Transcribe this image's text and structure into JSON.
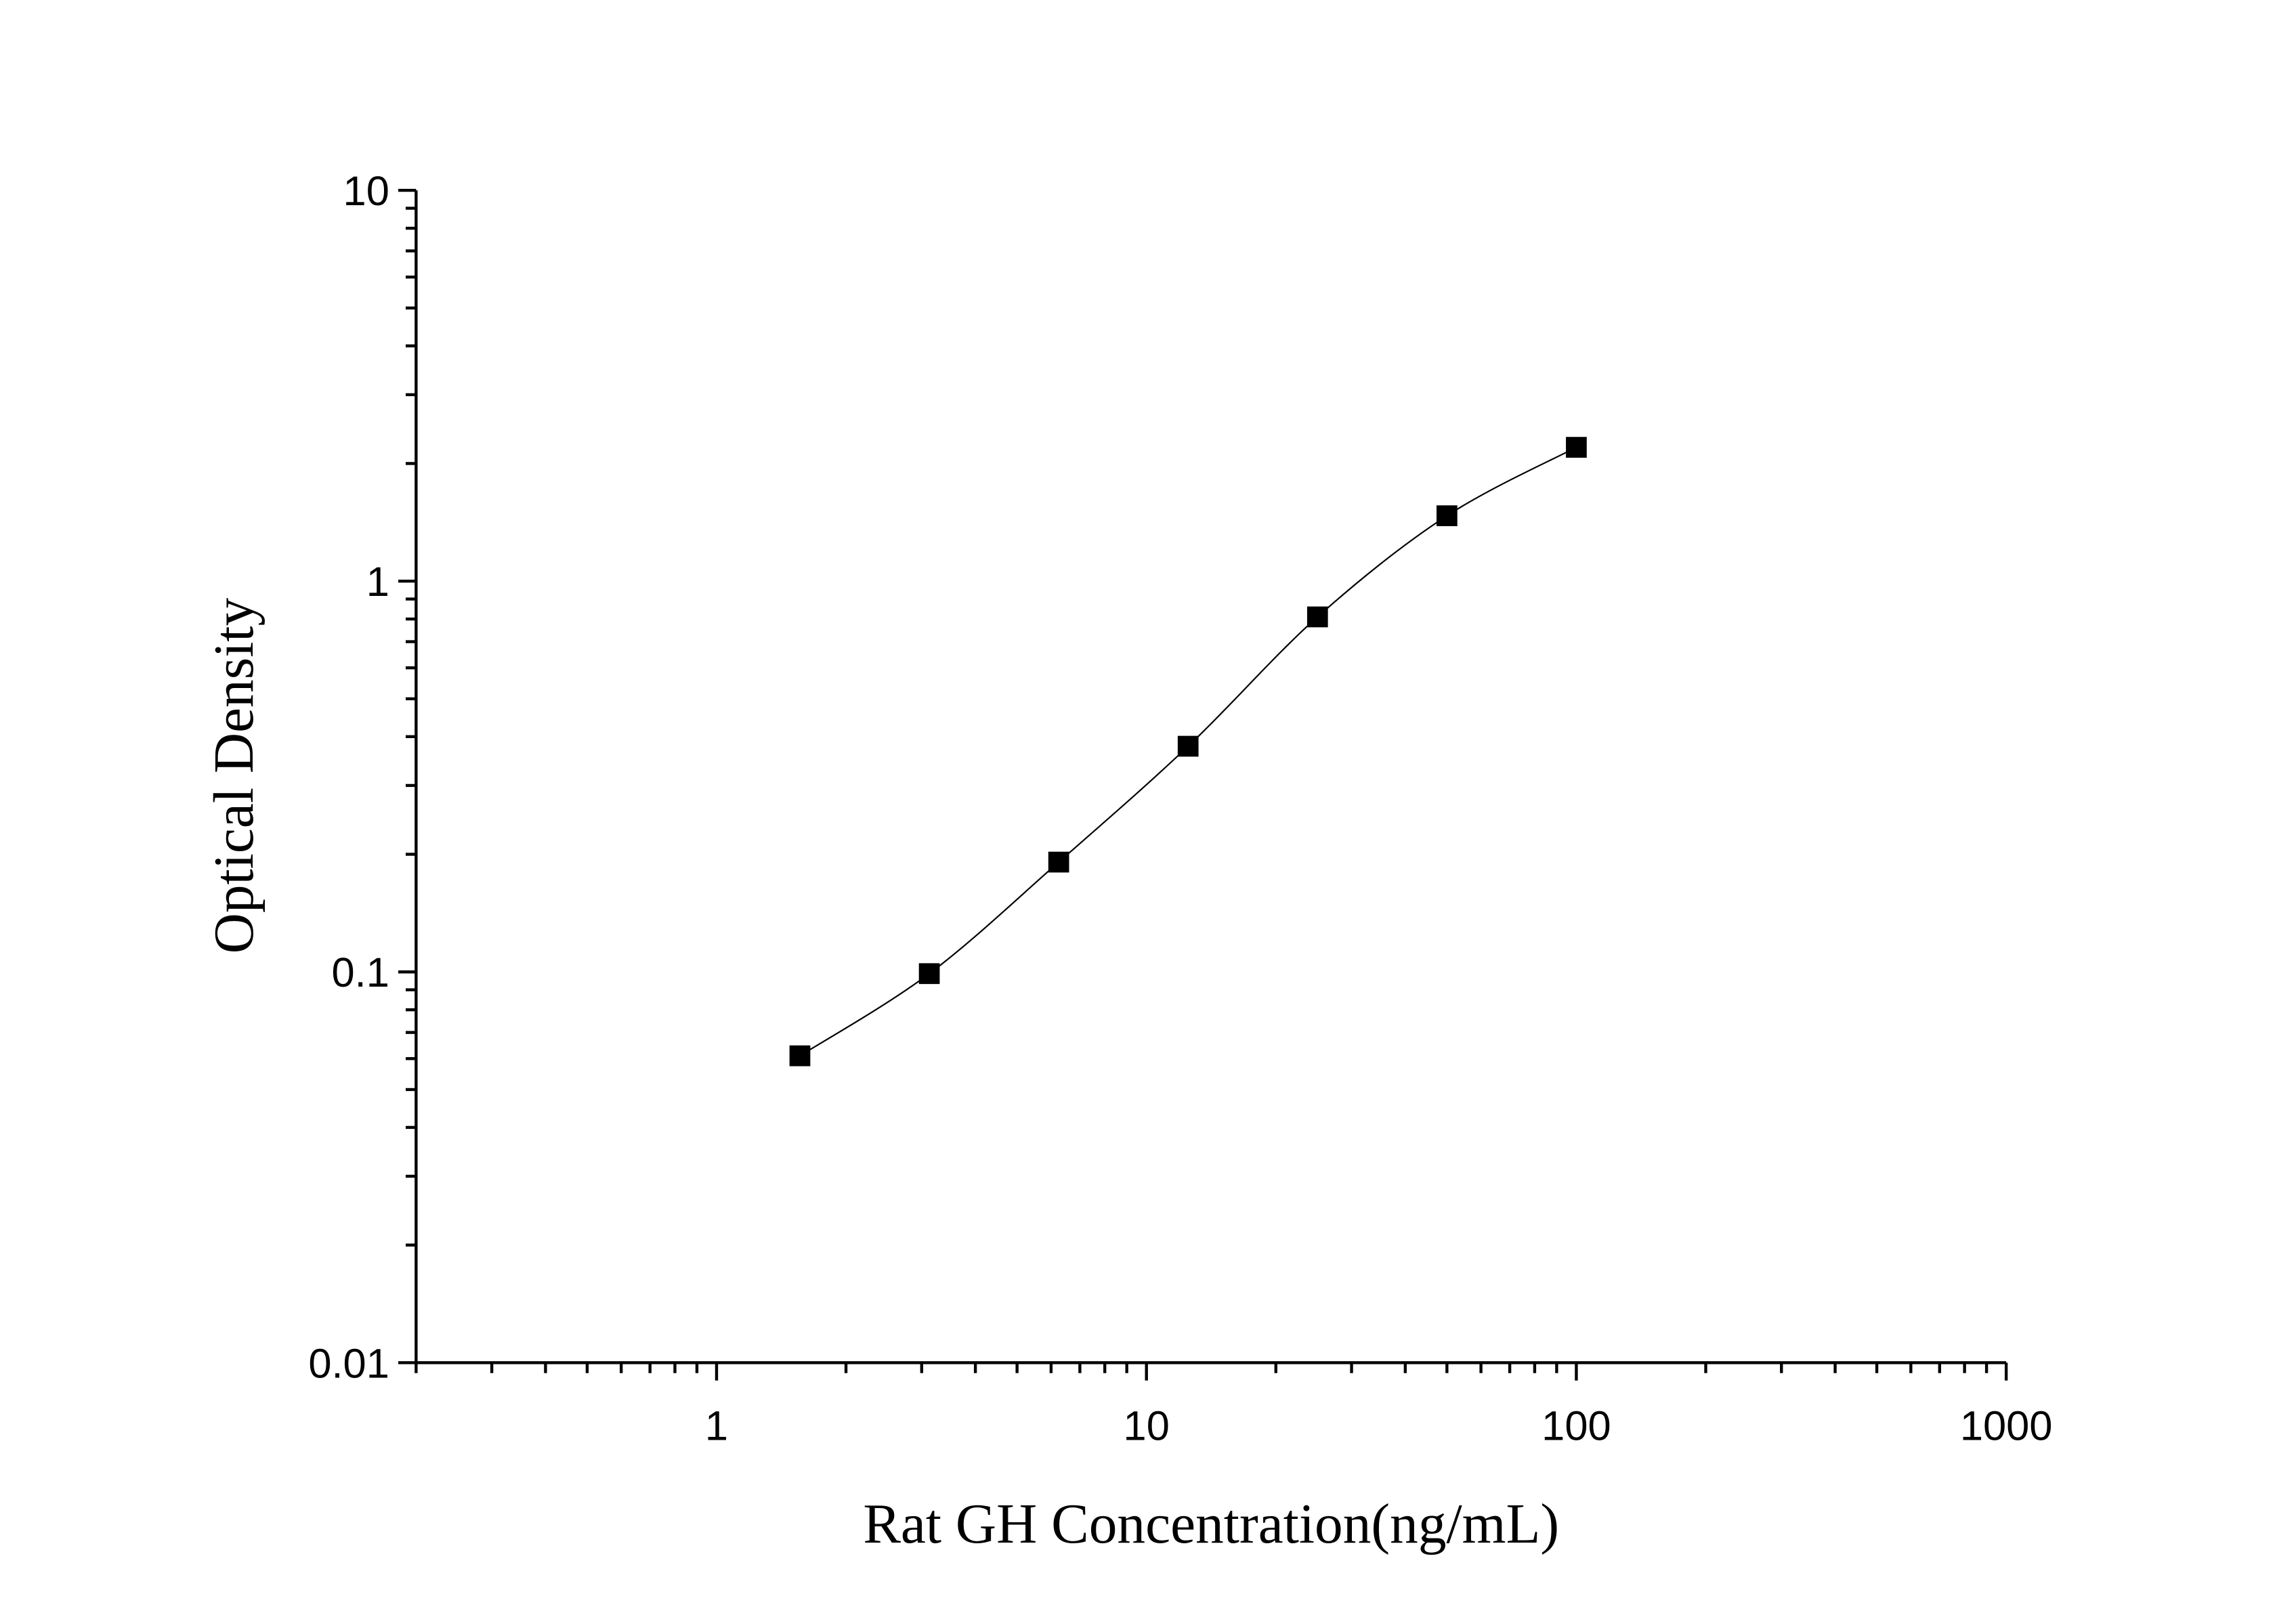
{
  "chart_data": {
    "type": "scatter",
    "title": "",
    "xlabel": "Rat GH Concentration(ng/mL)",
    "ylabel": "Optical Density",
    "x_scale": "log",
    "y_scale": "log",
    "xlim": [
      0.2,
      1000
    ],
    "ylim": [
      0.01,
      10
    ],
    "x_ticks": [
      1,
      10,
      100,
      1000
    ],
    "x_tick_labels": [
      "1",
      "10",
      "100",
      "1000"
    ],
    "y_ticks": [
      0.01,
      0.1,
      1,
      10
    ],
    "y_tick_labels": [
      "0.01",
      "0.1",
      "1",
      "10"
    ],
    "grid": false,
    "legend": "none",
    "marker": "square",
    "fit_line": "smooth curve through points",
    "color": "#000000",
    "series": [
      {
        "x": [
          1.5625,
          3.125,
          6.25,
          12.5,
          25,
          50,
          100
        ],
        "y": [
          0.061,
          0.099,
          0.191,
          0.378,
          0.81,
          1.47,
          2.2
        ]
      }
    ]
  }
}
